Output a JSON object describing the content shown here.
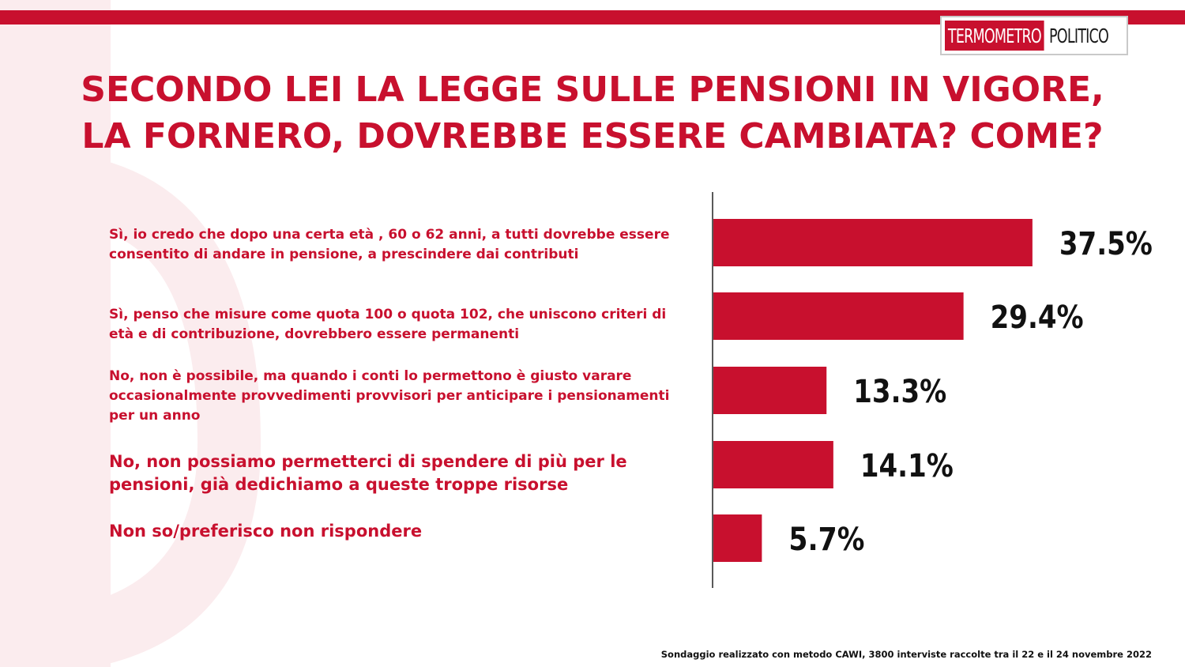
{
  "brand": {
    "logo_part1": "TERMOMETRO",
    "logo_part2": "POLITICO",
    "accent": "#c8102e"
  },
  "title_lines": [
    "SECONDO LEI LA LEGGE SULLE PENSIONI IN VIGORE,",
    "LA FORNERO, DOVREBBE ESSERE CAMBIATA? COME?"
  ],
  "chart_data": {
    "type": "bar",
    "orientation": "horizontal",
    "categories": [
      "Sì, io credo che dopo una certa età , 60 o 62 anni, a tutti dovrebbe essere consentito di andare in pensione, a prescindere dai contributi",
      "Sì, penso che misure come quota 100 o quota 102, che uniscono criteri di età  e di contribuzione, dovrebbero essere permanenti",
      "No, non è possibile, ma quando i conti lo permettono è giusto varare occasionalmente provvedimenti provvisori per anticipare i pensionamenti per un anno",
      "No, non possiamo permetterci di spendere di più per le pensioni, già  dedichiamo a queste troppe risorse",
      "Non so/preferisco non rispondere"
    ],
    "values": [
      37.5,
      29.4,
      13.3,
      14.1,
      5.7
    ],
    "data_labels": [
      "37.5%",
      "29.4%",
      "13.3%",
      "14.1%",
      "5.7%"
    ],
    "bar_color": "#c8102e",
    "grid": false,
    "legend": "none"
  },
  "footnote": "Sondaggio realizzato con metodo CAWI, 3800 interviste raccolte tra il 22 e il 24 novembre 2022"
}
